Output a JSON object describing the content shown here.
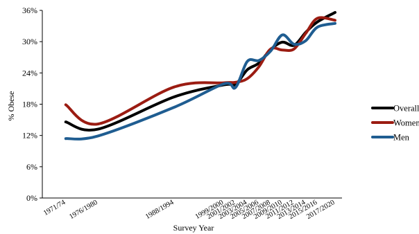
{
  "chart_data": {
    "type": "line",
    "title": "",
    "xlabel": "Survey Year",
    "ylabel": "% Obese",
    "ylim": [
      0,
      36
    ],
    "y_ticks": [
      "0%",
      "6%",
      "12%",
      "18%",
      "24%",
      "30%",
      "36%"
    ],
    "x_scale": "time (survey midpoint)",
    "categories": [
      "1971/74",
      "1976/1980",
      "1988/1994",
      "1999/2000",
      "2001/2002",
      "2003/2004",
      "2005/2006",
      "2007/2008",
      "2009/2010",
      "2011/2012",
      "2013/2014",
      "2015/2016",
      "2017/2020"
    ],
    "x_years": [
      1972.5,
      1978,
      1991,
      1999.5,
      2001.5,
      2003.5,
      2005.5,
      2007.5,
      2009.5,
      2011.5,
      2013.5,
      2015.5,
      2018.5
    ],
    "grid": false,
    "legend_position": "right",
    "series": [
      {
        "name": "Overall",
        "color": "#000000",
        "values": [
          14.6,
          13.2,
          19.4,
          21.7,
          21.8,
          24.6,
          25.9,
          28.5,
          29.9,
          29.3,
          31.8,
          33.8,
          35.6
        ]
      },
      {
        "name": "Women",
        "color": "#9b1c12",
        "values": [
          17.9,
          14.2,
          21.3,
          22.1,
          22.2,
          22.9,
          25.2,
          28.6,
          28.4,
          28.6,
          31.6,
          34.5,
          34.1
        ]
      },
      {
        "name": "Men",
        "color": "#1f5d91",
        "values": [
          11.4,
          11.9,
          17.4,
          21.9,
          21.2,
          26.2,
          26.4,
          28.2,
          31.3,
          29.5,
          30.2,
          32.8,
          33.5
        ]
      }
    ]
  }
}
